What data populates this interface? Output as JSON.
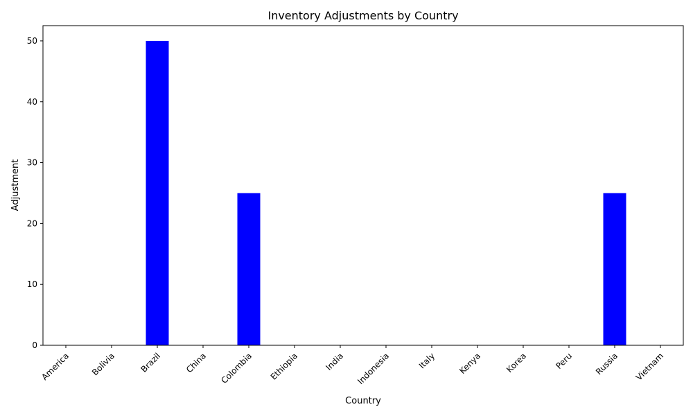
{
  "chart_data": {
    "type": "bar",
    "title": "Inventory Adjustments by Country",
    "xlabel": "Country",
    "ylabel": "Adjustment",
    "categories": [
      "America",
      "Bolivia",
      "Brazil",
      "China",
      "Colombia",
      "Ethiopia",
      "India",
      "Indonesia",
      "Italy",
      "Kenya",
      "Korea",
      "Peru",
      "Russia",
      "Vietnam"
    ],
    "values": [
      0,
      0,
      50,
      0,
      25,
      0,
      0,
      0,
      0,
      0,
      0,
      0,
      25,
      0
    ],
    "ylim": [
      0,
      52.5
    ],
    "yticks": [
      0,
      10,
      20,
      30,
      40,
      50
    ],
    "bar_color": "#0000ff",
    "grid": false,
    "legend": "none"
  }
}
